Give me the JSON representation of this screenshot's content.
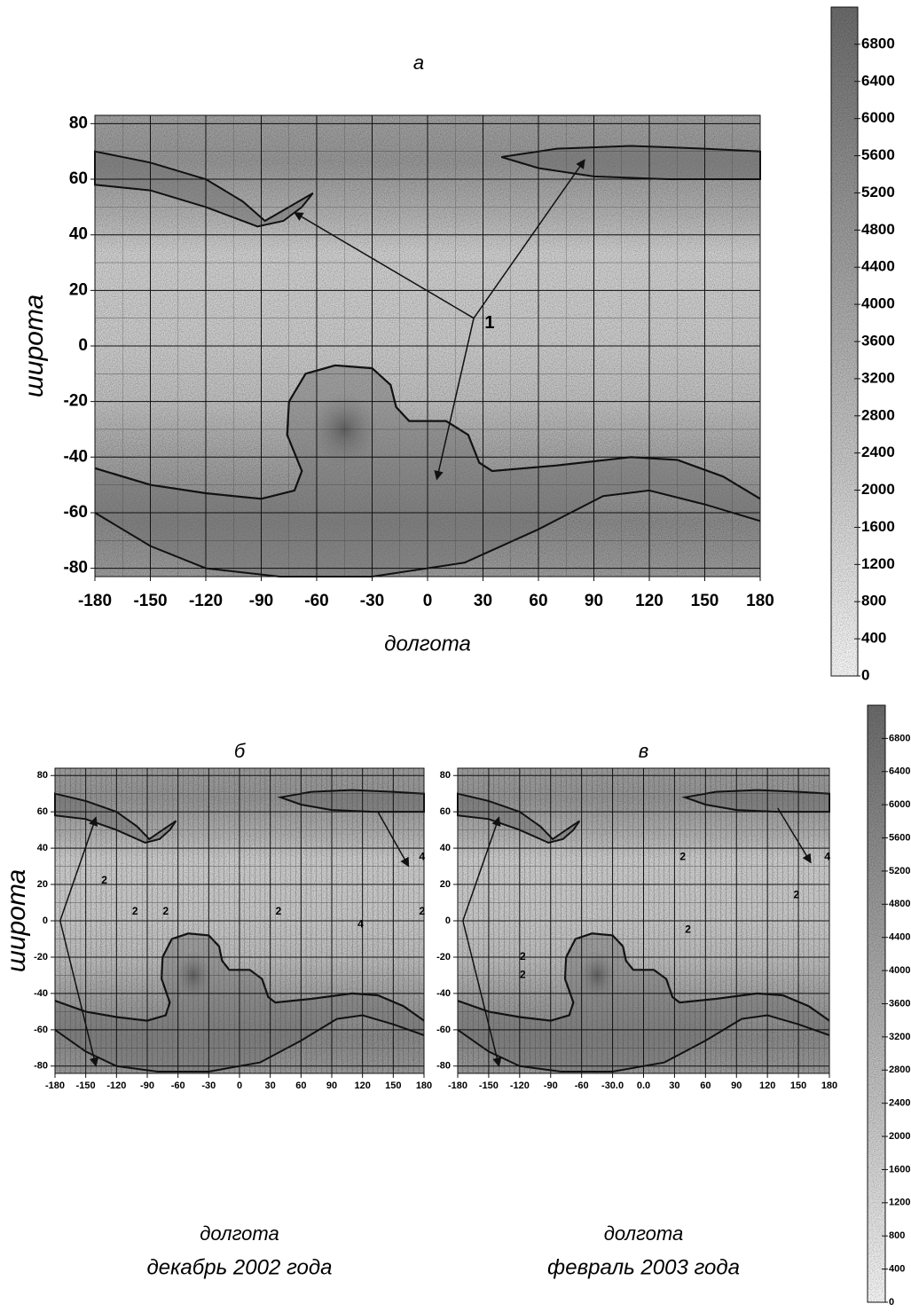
{
  "chart_data": [
    {
      "type": "map",
      "title": "а",
      "xlabel": "долгота",
      "ylabel": "широта",
      "xlim": [
        -180,
        180
      ],
      "xticks": [
        -180,
        -150,
        -120,
        -90,
        -60,
        -30,
        0,
        30,
        60,
        90,
        120,
        150,
        180
      ],
      "ylim": [
        -83,
        83
      ],
      "yticks": [
        -80,
        -60,
        -40,
        -20,
        0,
        20,
        40,
        60,
        80
      ],
      "annotations": [
        "1"
      ],
      "colorbar": {
        "lim": [
          0,
          7200
        ],
        "ticks": [
          0,
          400,
          800,
          1200,
          1600,
          2000,
          2400,
          2800,
          3200,
          3600,
          4000,
          4400,
          4800,
          5200,
          5600,
          6000,
          6400,
          6800
        ]
      }
    },
    {
      "type": "map",
      "title": "б",
      "xlabel": "долгота",
      "subtitle": "декабрь 2002 года",
      "ylabel": "широта",
      "xlim": [
        -180,
        180
      ],
      "xticks": [
        -180,
        -150,
        -120,
        -90,
        -60,
        -30,
        0,
        30,
        60,
        90,
        120,
        150,
        180
      ],
      "ylim": [
        -84,
        84
      ],
      "yticks": [
        -80,
        -60,
        -40,
        -20,
        0,
        20,
        40,
        60,
        80
      ],
      "annotations": [
        "2",
        "2",
        "2",
        "2",
        "4",
        "2",
        "4"
      ]
    },
    {
      "type": "map",
      "title": "в",
      "xlabel": "долгота",
      "subtitle": "февраль 2003 года",
      "xlim": [
        -180,
        180
      ],
      "xticks": [
        -180,
        -150,
        -120,
        -90,
        -60,
        {
          "value": -30,
          "label": "-30.0"
        },
        {
          "value": 0,
          "label": "0.0"
        },
        30,
        60,
        90,
        120,
        150,
        180
      ],
      "ylim": [
        -84,
        84
      ],
      "yticks": [
        -80,
        -60,
        -40,
        -20,
        0,
        20,
        40,
        60,
        80
      ],
      "annotations": [
        "4",
        "2",
        "2",
        "2",
        "2",
        "2"
      ],
      "colorbar": {
        "lim": [
          0,
          7200
        ],
        "ticks": [
          0,
          400,
          800,
          1200,
          1600,
          2000,
          2400,
          2800,
          3200,
          3600,
          4000,
          4400,
          4800,
          5200,
          5600,
          6000,
          6400,
          6800
        ]
      }
    }
  ]
}
